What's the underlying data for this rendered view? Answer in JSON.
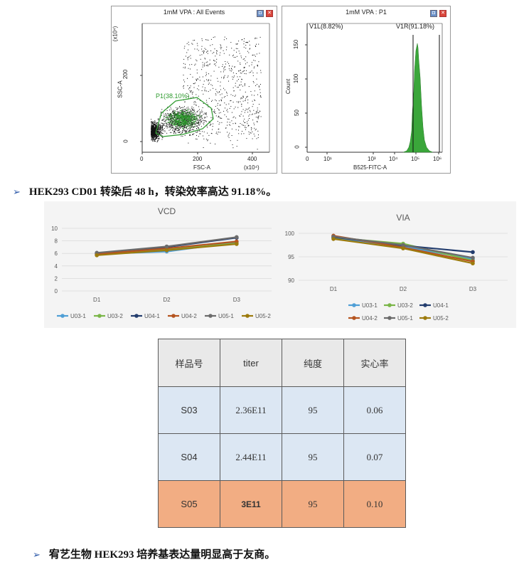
{
  "facs_left": {
    "title": "1mM VPA : All Events",
    "xlabel": "FSC-A",
    "ylabel": "SSC-A",
    "x_ticks": [
      "0",
      "200",
      "400"
    ],
    "y_ticks": [
      "0",
      "200"
    ],
    "x_scale": "(x10⁴)",
    "y_scale": "(x10⁴)",
    "gate_label": "P1(38.10%)",
    "gate_color": "#2e9b2e"
  },
  "facs_right": {
    "title": "1mM VPA : P1",
    "xlabel": "B525-FITC-A",
    "ylabel": "Count",
    "y_ticks": [
      "0",
      "50",
      "100",
      "150"
    ],
    "x_ticks": [
      "0",
      "10¹",
      "10³",
      "10⁴",
      "10⁵",
      "10⁶"
    ],
    "gate_left_label": "V1L(8.82%)",
    "gate_right_label": "V1R(91.18%)",
    "hist_color": "#3aa63a"
  },
  "bullet1": {
    "arrow": "➢",
    "text": "HEK293 CD01 转染后 48 h，转染效率高达 91.18%。"
  },
  "chart_data": [
    {
      "type": "line",
      "title": "VCD",
      "categories": [
        "D1",
        "D2",
        "D3"
      ],
      "ylim": [
        0,
        10
      ],
      "y_ticks": [
        "0",
        "2",
        "4",
        "6",
        "8",
        "10"
      ],
      "series": [
        {
          "name": "U03-1",
          "color": "#4f9fd6",
          "values": [
            5.9,
            6.3,
            7.8
          ]
        },
        {
          "name": "U03-2",
          "color": "#7ab648",
          "values": [
            5.8,
            6.6,
            7.6
          ]
        },
        {
          "name": "U04-1",
          "color": "#233d6e",
          "values": [
            6.0,
            7.0,
            8.5
          ]
        },
        {
          "name": "U04-2",
          "color": "#b5541f",
          "values": [
            5.9,
            6.8,
            7.9
          ]
        },
        {
          "name": "U05-1",
          "color": "#6b6b6b",
          "values": [
            6.1,
            7.1,
            8.6
          ]
        },
        {
          "name": "U05-2",
          "color": "#9c7a0c",
          "values": [
            5.7,
            6.5,
            7.5
          ]
        }
      ],
      "legend": "bottom"
    },
    {
      "type": "line",
      "title": "VIA",
      "categories": [
        "D1",
        "D2",
        "D3"
      ],
      "ylim": [
        90,
        100
      ],
      "y_ticks": [
        "90",
        "95",
        "100"
      ],
      "series": [
        {
          "name": "U03-1",
          "color": "#4f9fd6",
          "values": [
            99.0,
            97.2,
            94.5
          ]
        },
        {
          "name": "U03-2",
          "color": "#7ab648",
          "values": [
            99.1,
            97.8,
            94.2
          ]
        },
        {
          "name": "U04-1",
          "color": "#233d6e",
          "values": [
            99.2,
            97.4,
            96.0
          ]
        },
        {
          "name": "U04-2",
          "color": "#b5541f",
          "values": [
            99.5,
            97.0,
            94.0
          ]
        },
        {
          "name": "U05-1",
          "color": "#6b6b6b",
          "values": [
            99.3,
            97.5,
            94.8
          ]
        },
        {
          "name": "U05-2",
          "color": "#9c7a0c",
          "values": [
            98.8,
            96.8,
            93.6
          ]
        }
      ],
      "legend": "bottom"
    }
  ],
  "table": {
    "headers": [
      "样品号",
      "titer",
      "纯度",
      "实心率"
    ],
    "rows": [
      [
        "S03",
        "2.36E11",
        "95",
        "0.06"
      ],
      [
        "S04",
        "2.44E11",
        "95",
        "0.07"
      ],
      [
        "S05",
        "3E11",
        "95",
        "0.10"
      ]
    ]
  },
  "bullet2": {
    "arrow": "➢",
    "text": "宥艺生物 HEK293 培养基表达量明显高于友商。"
  }
}
